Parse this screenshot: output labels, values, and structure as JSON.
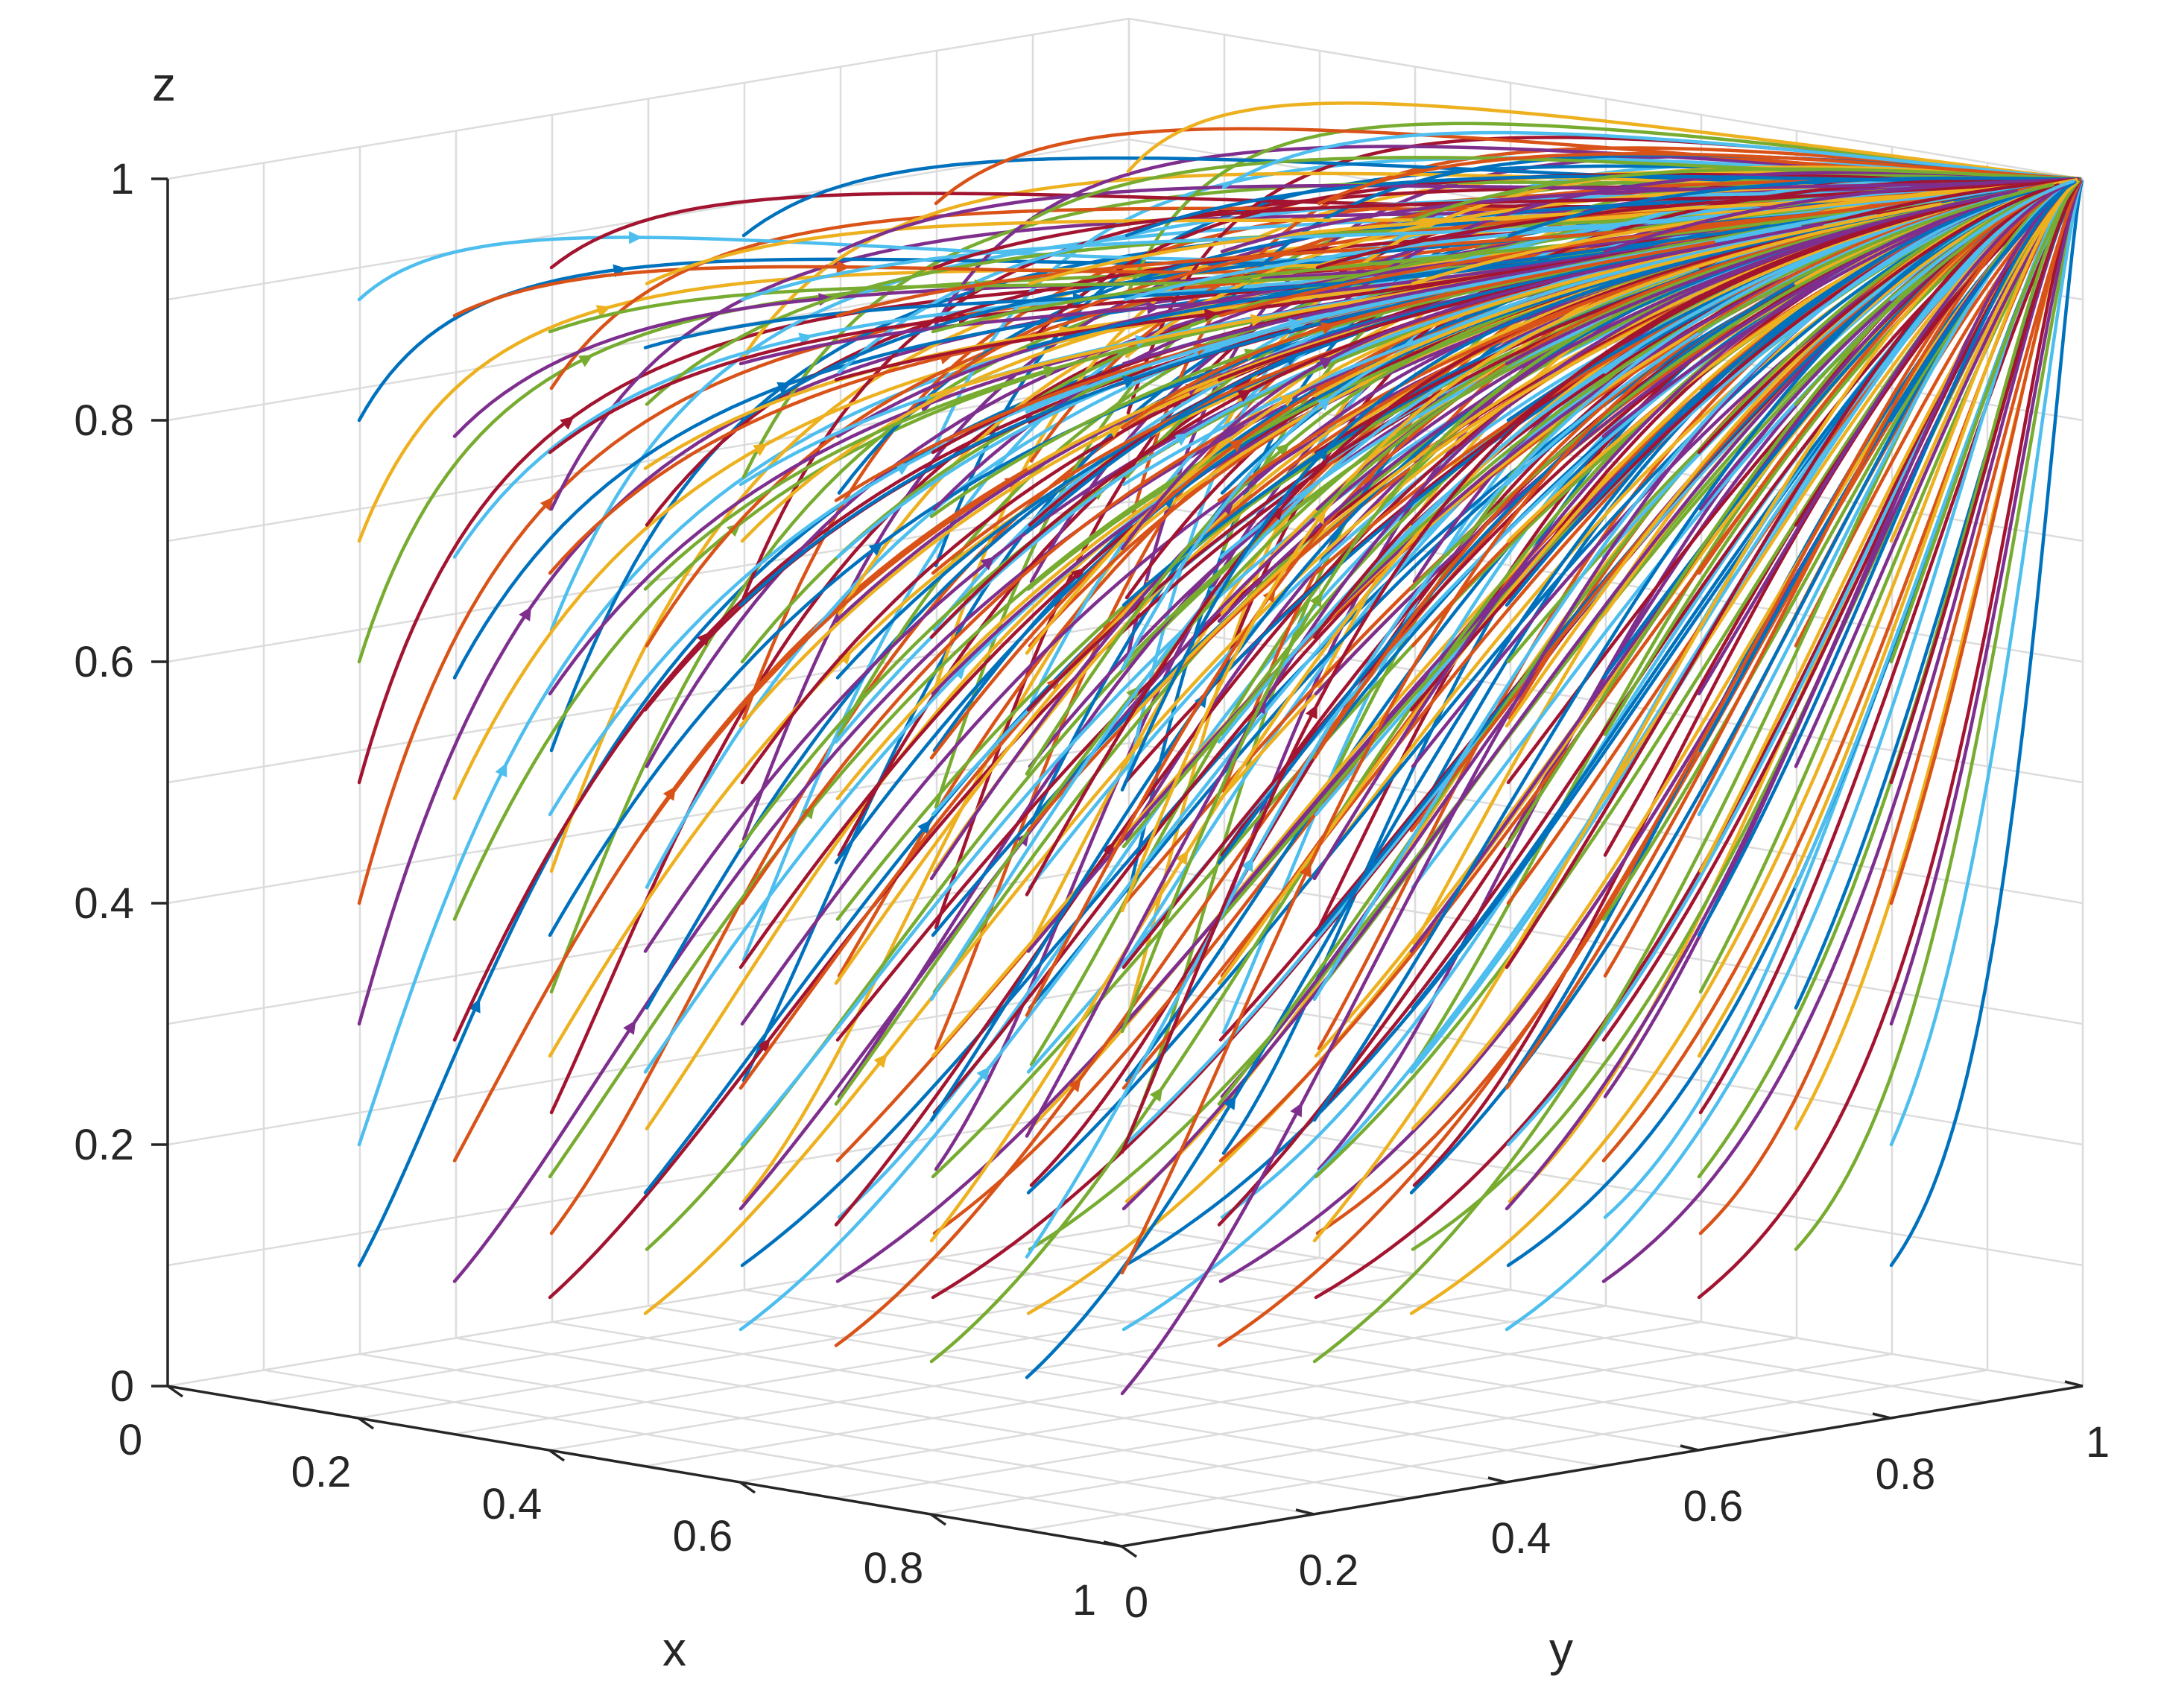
{
  "chart_data": {
    "type": "line",
    "subtype": "3d-phase-trajectories",
    "xlabel": "x",
    "ylabel": "y",
    "zlabel": "z",
    "xlim": [
      0,
      1
    ],
    "ylim": [
      0,
      1
    ],
    "zlim": [
      0,
      1
    ],
    "x_ticks": [
      "0",
      "0.2",
      "0.4",
      "0.6",
      "0.8",
      "1"
    ],
    "y_ticks": [
      "0",
      "0.2",
      "0.4",
      "0.6",
      "0.8",
      "1"
    ],
    "z_ticks": [
      "0",
      "0.2",
      "0.4",
      "0.6",
      "0.8",
      "1"
    ],
    "grid": true,
    "converges_to": [
      1,
      1,
      1
    ],
    "colors": [
      "#0072BD",
      "#D95319",
      "#EDB120",
      "#7E2F8E",
      "#77AC30",
      "#4DBEEE",
      "#A2142F"
    ],
    "initial_x_values": [
      0.1,
      0.2,
      0.3,
      0.4,
      0.5,
      0.6,
      0.7,
      0.8,
      0.9
    ],
    "initial_z_values": [
      0.1,
      0.2,
      0.3,
      0.4,
      0.5,
      0.6,
      0.7,
      0.8,
      0.9
    ],
    "initial_y_values": [
      0.1,
      0.3,
      0.5,
      0.7,
      0.9
    ],
    "arrow_markers": true
  }
}
